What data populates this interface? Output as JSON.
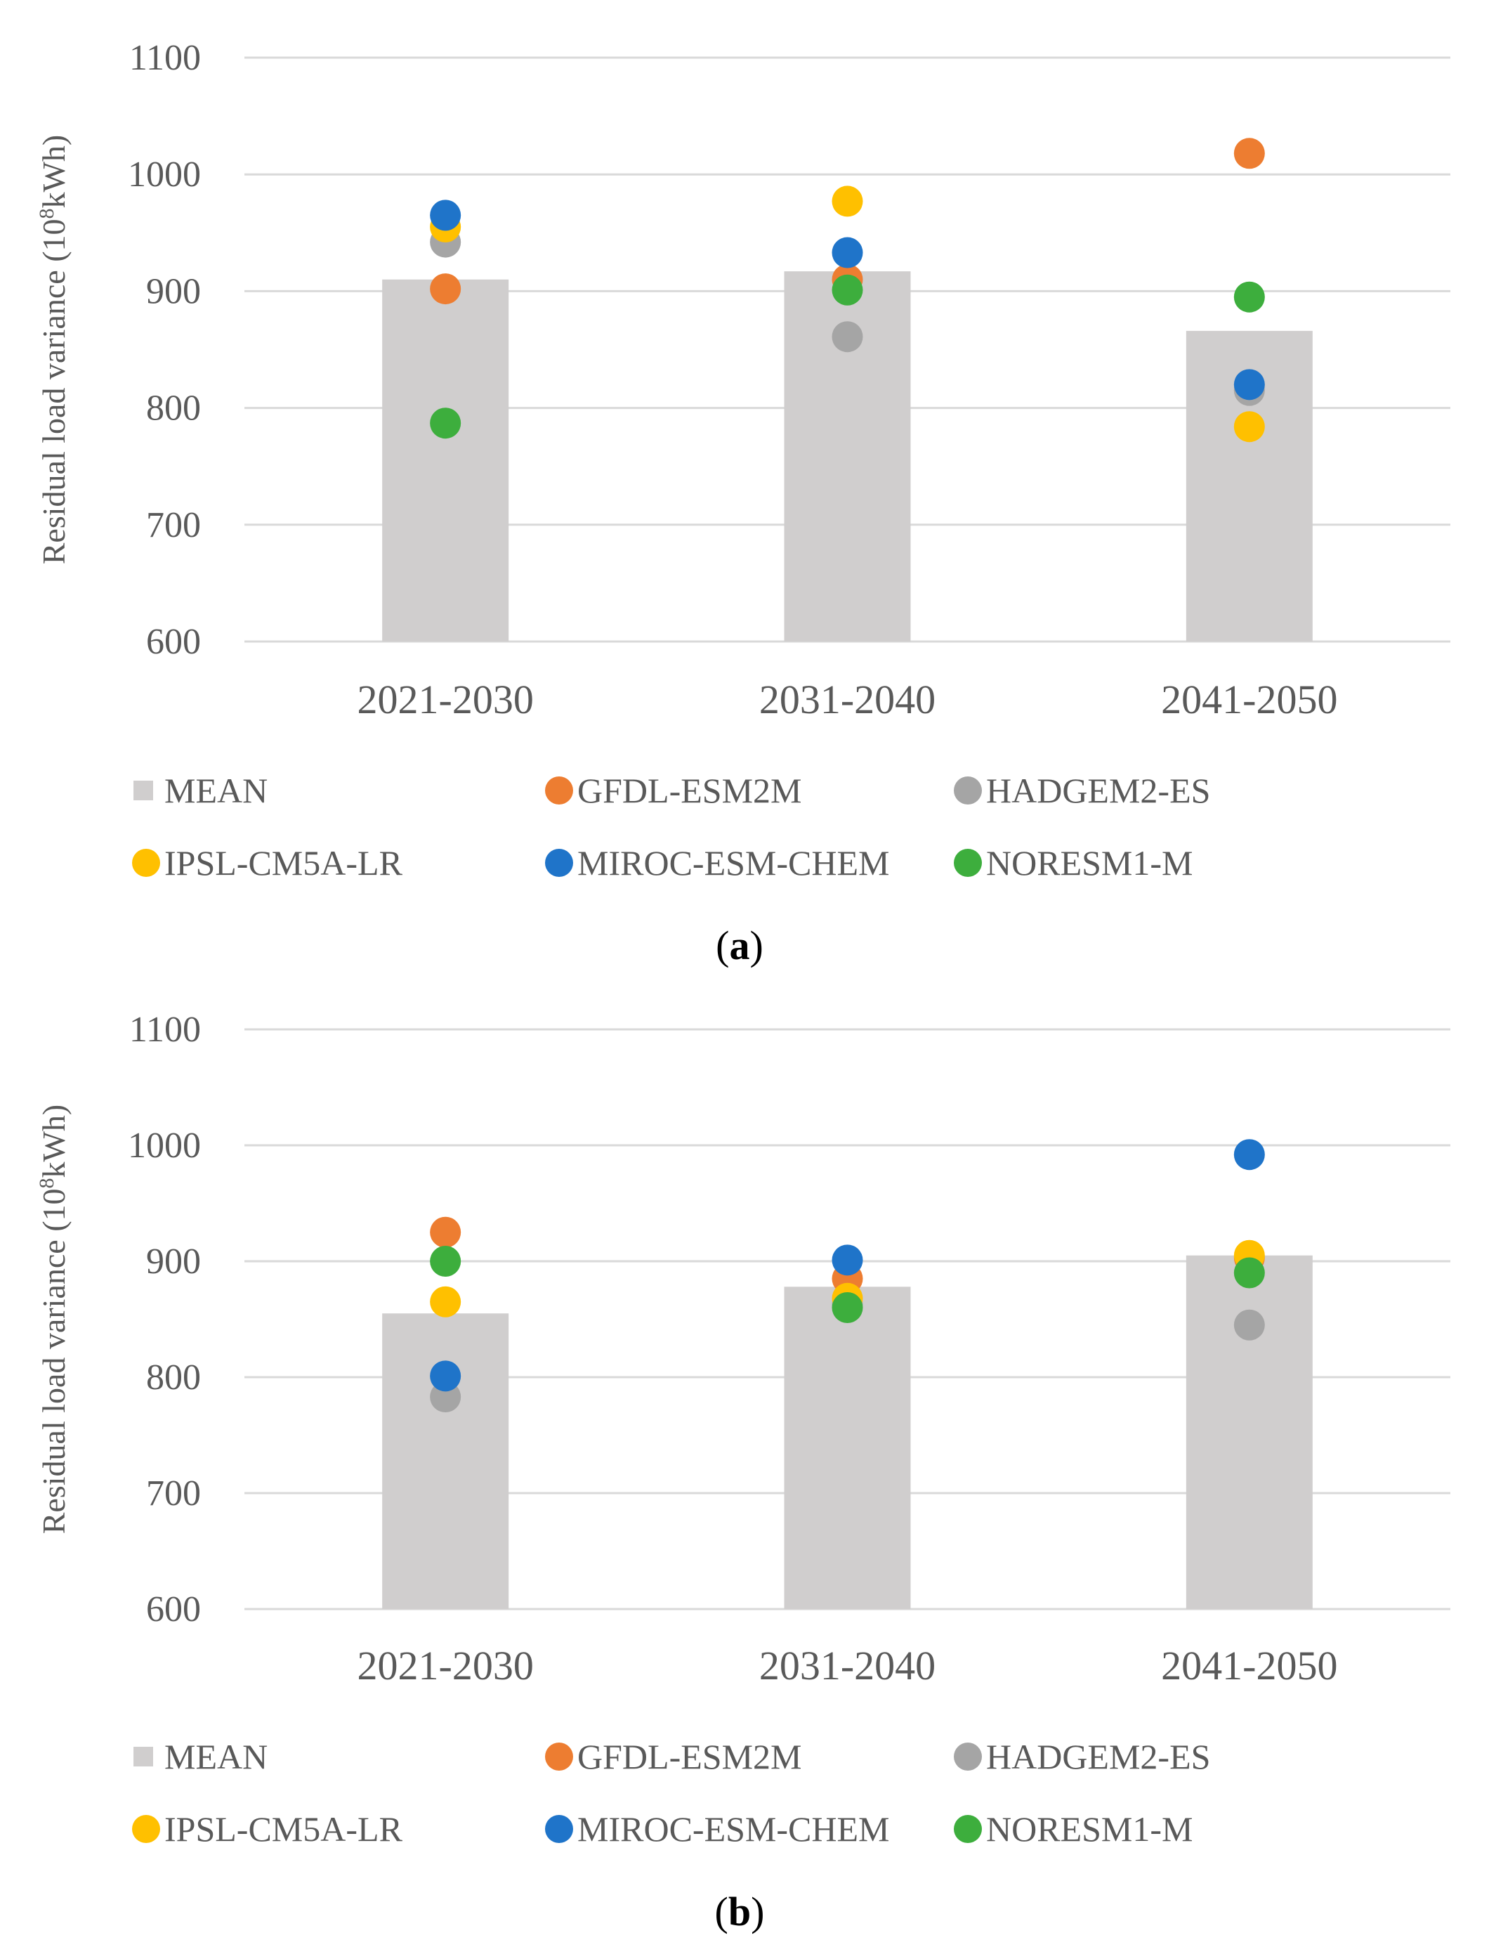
{
  "colors": {
    "MEAN": "#d0cece",
    "GFDL-ESM2M": "#ed7d31",
    "HADGEM2-ES": "#a5a5a5",
    "IPSL-CM5A-LR": "#ffc000",
    "MIROC-ESM-CHEM": "#1f74c9",
    "NORESM1-M": "#3dae3d",
    "grid": "#d9d9d9",
    "text": "#595959"
  },
  "chart_data": [
    {
      "type": "bar",
      "caption": "a",
      "ylabel_main": "Residual load variance (10",
      "ylabel_sup": "8",
      "ylabel_unit": "kWh)",
      "ylim": [
        600,
        1100
      ],
      "yticks": [
        "600",
        "700",
        "800",
        "900",
        "1000",
        "1100"
      ],
      "categories": [
        "2021-2030",
        "2031-2040",
        "2041-2050"
      ],
      "bar_series": {
        "name": "MEAN",
        "values": [
          910,
          917,
          866
        ]
      },
      "point_series": [
        {
          "name": "GFDL-ESM2M",
          "values": [
            902,
            910,
            1018
          ]
        },
        {
          "name": "HADGEM2-ES",
          "values": [
            942,
            861,
            815
          ]
        },
        {
          "name": "IPSL-CM5A-LR",
          "values": [
            955,
            977,
            784
          ]
        },
        {
          "name": "MIROC-ESM-CHEM",
          "values": [
            965,
            933,
            820
          ]
        },
        {
          "name": "NORESM1-M",
          "values": [
            787,
            901,
            895
          ]
        }
      ],
      "legend": [
        "MEAN",
        "GFDL-ESM2M",
        "HADGEM2-ES",
        "IPSL-CM5A-LR",
        "MIROC-ESM-CHEM",
        "NORESM1-M"
      ],
      "legend_position": "bottom"
    },
    {
      "type": "bar",
      "caption": "b",
      "ylabel_main": "Residual load variance (10",
      "ylabel_sup": "8",
      "ylabel_unit": "kWh)",
      "ylim": [
        600,
        1100
      ],
      "yticks": [
        "600",
        "700",
        "800",
        "900",
        "1000",
        "1100"
      ],
      "categories": [
        "2021-2030",
        "2031-2040",
        "2041-2050"
      ],
      "bar_series": {
        "name": "MEAN",
        "values": [
          855,
          878,
          905
        ]
      },
      "point_series": [
        {
          "name": "GFDL-ESM2M",
          "values": [
            925,
            885,
            903
          ]
        },
        {
          "name": "HADGEM2-ES",
          "values": [
            783,
            863,
            845
          ]
        },
        {
          "name": "IPSL-CM5A-LR",
          "values": [
            865,
            868,
            905
          ]
        },
        {
          "name": "MIROC-ESM-CHEM",
          "values": [
            801,
            901,
            992
          ]
        },
        {
          "name": "NORESM1-M",
          "values": [
            900,
            860,
            890
          ]
        }
      ],
      "legend": [
        "MEAN",
        "GFDL-ESM2M",
        "HADGEM2-ES",
        "IPSL-CM5A-LR",
        "MIROC-ESM-CHEM",
        "NORESM1-M"
      ],
      "legend_position": "bottom"
    }
  ]
}
